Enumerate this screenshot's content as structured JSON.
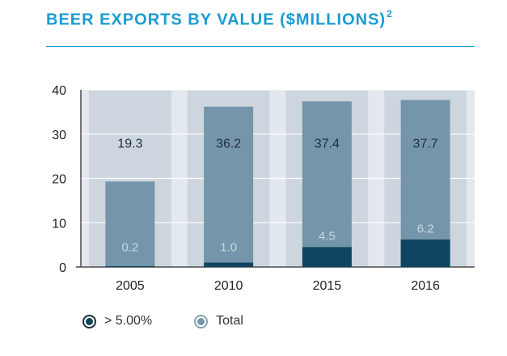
{
  "header": {
    "title": "BEER EXPORTS BY VALUE ($MILLIONS)",
    "title_sup": "2"
  },
  "colors": {
    "accent": "#1a9bd1",
    "over5": "#0f4560",
    "total": "#7596aa",
    "band_dark": "#cdd6de",
    "band_light": "#e2e8ed",
    "axis_text": "#222222",
    "label_dark": "#1e2f3d",
    "label_light": "#ccd7de"
  },
  "legend": {
    "items": [
      {
        "label": "> 5.00%",
        "icon": "filled-circle-dark",
        "color": "#0f4560"
      },
      {
        "label": "Total",
        "icon": "filled-circle-light",
        "color": "#7596aa"
      }
    ]
  },
  "chart_data": {
    "type": "bar",
    "title": "BEER EXPORTS BY VALUE ($MILLIONS)",
    "xlabel": "",
    "ylabel": "",
    "categories": [
      "2005",
      "2010",
      "2015",
      "2016"
    ],
    "series": [
      {
        "name": "Total",
        "values": [
          19.3,
          36.2,
          37.4,
          37.7
        ],
        "labels": [
          "19.3",
          "36.2",
          "37.4",
          "37.7"
        ]
      },
      {
        "name": "> 5.00%",
        "values": [
          0.2,
          1.0,
          4.5,
          6.2
        ],
        "labels": [
          "0.2",
          "1.0",
          "4.5",
          "6.2"
        ]
      }
    ],
    "ylim": [
      0,
      40
    ],
    "yticks": [
      0,
      10,
      20,
      30,
      40
    ],
    "grid": true,
    "legend_position": "bottom-left"
  }
}
